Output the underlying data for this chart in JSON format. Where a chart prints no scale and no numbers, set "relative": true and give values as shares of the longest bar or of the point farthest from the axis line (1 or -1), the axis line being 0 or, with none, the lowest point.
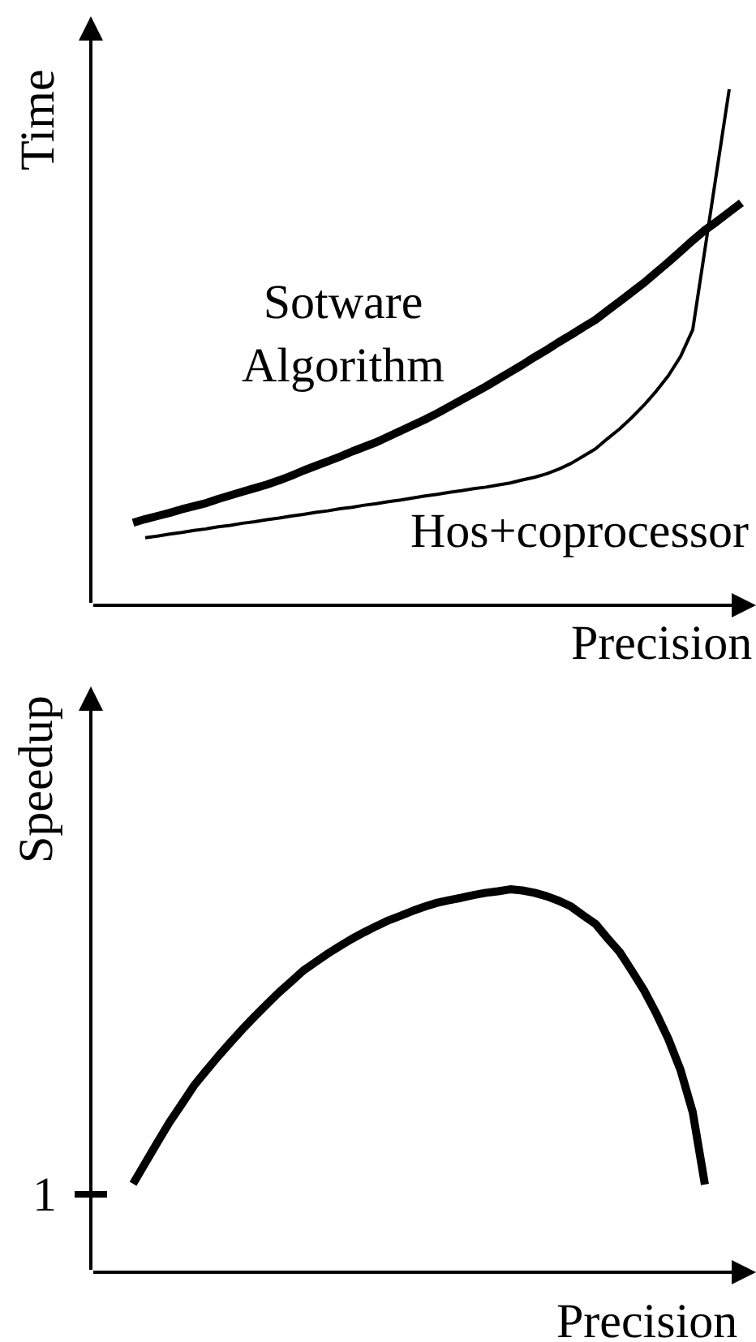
{
  "chart_data": [
    {
      "type": "line",
      "relative": true,
      "xlabel": "Precision",
      "ylabel": "Time",
      "categories": [
        null,
        null,
        null,
        null,
        null,
        null,
        null,
        null,
        null,
        null,
        null,
        null,
        null,
        null,
        null,
        null,
        null,
        null,
        null,
        null,
        null,
        null,
        null,
        null,
        null,
        null,
        null,
        null,
        null,
        null,
        null,
        null,
        null,
        null,
        null,
        null,
        null,
        null,
        null,
        null,
        null,
        null,
        null,
        null,
        null,
        null,
        null,
        null,
        null,
        null,
        null
      ],
      "series": [
        {
          "name": "Sotware\nAlgorithm",
          "color": "#000000",
          "values": [
            0.16,
            0.167,
            0.173,
            0.179,
            0.186,
            0.192,
            0.198,
            0.206,
            0.213,
            0.22,
            0.227,
            0.234,
            0.242,
            0.251,
            0.261,
            0.27,
            0.279,
            0.288,
            0.298,
            0.307,
            0.316,
            0.327,
            0.338,
            0.349,
            0.36,
            0.372,
            0.385,
            0.398,
            0.411,
            0.424,
            0.438,
            0.452,
            0.466,
            0.481,
            0.495,
            0.51,
            0.524,
            0.539,
            0.553,
            0.571,
            0.589,
            0.607,
            0.625,
            0.645,
            0.665,
            0.686,
            0.707,
            0.727,
            0.744,
            0.762,
            0.78
          ]
        },
        {
          "name": "Hos+coprocessor",
          "color": "#000000",
          "values": [
            null,
            0.131,
            0.134,
            0.138,
            0.141,
            0.145,
            0.148,
            0.152,
            0.155,
            0.159,
            0.162,
            0.166,
            0.169,
            0.173,
            0.176,
            0.18,
            0.183,
            0.187,
            0.19,
            0.194,
            0.197,
            0.201,
            0.204,
            0.208,
            0.212,
            0.215,
            0.219,
            0.222,
            0.226,
            0.229,
            0.233,
            0.237,
            0.243,
            0.248,
            0.255,
            0.264,
            0.275,
            0.289,
            0.303,
            0.323,
            0.342,
            0.364,
            0.388,
            0.415,
            0.445,
            0.482,
            0.534,
            0.689,
            0.845,
            1,
            null
          ]
        }
      ]
    },
    {
      "type": "line",
      "relative": true,
      "xlabel": "Precision",
      "ylabel": "Speedup",
      "categories": [
        null,
        null,
        null,
        null,
        null,
        null,
        null,
        null,
        null,
        null,
        null,
        null,
        null,
        null,
        null,
        null,
        null,
        null,
        null,
        null,
        null,
        null,
        null,
        null,
        null,
        null,
        null,
        null,
        null,
        null,
        null,
        null,
        null,
        null,
        null,
        null,
        null,
        null,
        null,
        null,
        null,
        null,
        null,
        null,
        null,
        null,
        null,
        null,
        null,
        null,
        null
      ],
      "annotations": [
        "1"
      ],
      "color": "#000000",
      "values": [
        0.231,
        0.285,
        0.339,
        0.392,
        0.439,
        0.487,
        0.526,
        0.564,
        0.6,
        0.635,
        0.668,
        0.7,
        0.731,
        0.759,
        0.788,
        0.81,
        0.832,
        0.852,
        0.871,
        0.888,
        0.904,
        0.919,
        0.931,
        0.944,
        0.955,
        0.965,
        0.972,
        0.978,
        0.985,
        0.991,
        0.995,
        1,
        0.997,
        0.991,
        0.982,
        0.97,
        0.955,
        0.932,
        0.91,
        0.872,
        0.836,
        0.787,
        0.736,
        0.676,
        0.609,
        0.528,
        0.418,
        0.229,
        null,
        null,
        null
      ]
    }
  ]
}
